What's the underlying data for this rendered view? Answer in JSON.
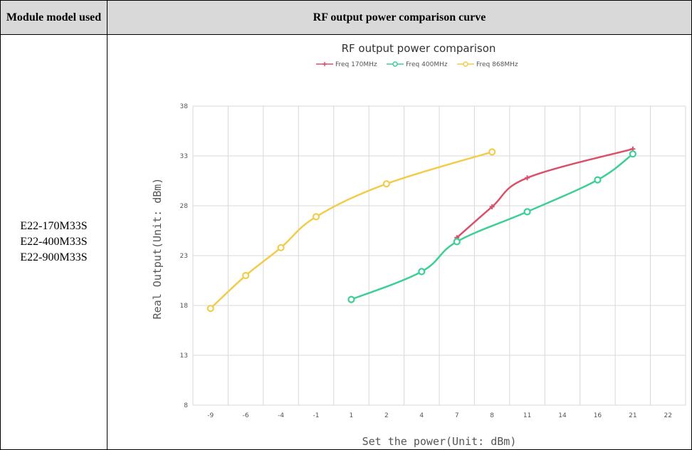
{
  "table": {
    "header_left": "Module model used",
    "header_right": "RF output power comparison curve",
    "models": [
      "E22-170M33S",
      "E22-400M33S",
      "E22-900M33S"
    ]
  },
  "chart_data": {
    "type": "line",
    "title": "RF output power comparison",
    "xlabel": "Set the power(Unit: dBm)",
    "ylabel": "Real Output(Unit: dBm)",
    "categories": [
      "-9",
      "-6",
      "-4",
      "-1",
      "1",
      "2",
      "4",
      "7",
      "8",
      "11",
      "14",
      "16",
      "21",
      "22"
    ],
    "ylim": [
      8,
      38
    ],
    "yticks": [
      8,
      13,
      18,
      23,
      28,
      33,
      38
    ],
    "grid": true,
    "legend_position": "top",
    "series": [
      {
        "name": "Freq 170MHz",
        "color": "#d9506b",
        "marker": "plus",
        "points": [
          [
            "7",
            24.8
          ],
          [
            "8",
            27.9
          ],
          [
            "11",
            30.8
          ],
          [
            "21",
            33.7
          ]
        ]
      },
      {
        "name": "Freq 400MHz",
        "color": "#3ecf96",
        "marker": "circle",
        "points": [
          [
            "1",
            18.6
          ],
          [
            "4",
            21.4
          ],
          [
            "7",
            24.4
          ],
          [
            "11",
            27.4
          ],
          [
            "16",
            30.6
          ],
          [
            "21",
            33.2
          ]
        ]
      },
      {
        "name": "Freq 868MHz",
        "color": "#f2cc4d",
        "marker": "circle",
        "points": [
          [
            "-9",
            17.7
          ],
          [
            "-6",
            21.0
          ],
          [
            "-4",
            23.8
          ],
          [
            "-1",
            26.9
          ],
          [
            "2",
            30.2
          ],
          [
            "8",
            33.4
          ]
        ]
      }
    ]
  }
}
